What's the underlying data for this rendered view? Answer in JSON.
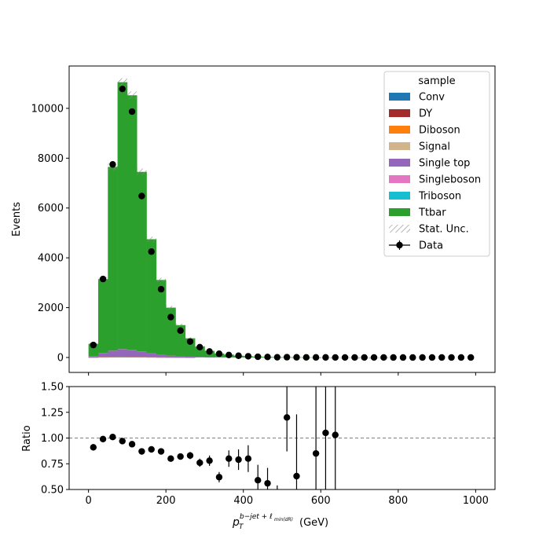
{
  "chart_data": [
    {
      "type": "bar",
      "subtype": "stacked-histogram-with-data-points",
      "ylabel": "Events",
      "xlim": [
        -50,
        1050
      ],
      "ylim": [
        -600,
        11700
      ],
      "x_ticks": [
        0,
        200,
        400,
        600,
        800,
        1000
      ],
      "x_tick_labels": [
        "",
        "",
        "",
        "",
        "",
        ""
      ],
      "y_ticks": [
        0,
        2000,
        4000,
        6000,
        8000,
        10000
      ],
      "y_tick_labels": [
        "0",
        "2000",
        "4000",
        "6000",
        "8000",
        "10000"
      ],
      "bin_edges": [
        0,
        25,
        50,
        75,
        100,
        125,
        150,
        175,
        200,
        225,
        250,
        275,
        300,
        325,
        350,
        375,
        400,
        425,
        450,
        475,
        500,
        525,
        550,
        575,
        600,
        625,
        650,
        675,
        700,
        725,
        750,
        775,
        800,
        825,
        850,
        875,
        900,
        925,
        950,
        975,
        1000
      ],
      "series": [
        {
          "name": "Conv",
          "color": "#1f77b4",
          "values": [
            2,
            6,
            10,
            12,
            10,
            8,
            5,
            3,
            2,
            1,
            1,
            0,
            0,
            0,
            0,
            0,
            0,
            0,
            0,
            0,
            0,
            0,
            0,
            0,
            0,
            0,
            0,
            0,
            0,
            0,
            0,
            0,
            0,
            0,
            0,
            0,
            0,
            0,
            0,
            0
          ]
        },
        {
          "name": "DY",
          "color": "#a52a2a",
          "values": [
            2,
            6,
            10,
            11,
            9,
            7,
            4,
            3,
            2,
            1,
            1,
            0,
            0,
            0,
            0,
            0,
            0,
            0,
            0,
            0,
            0,
            0,
            0,
            0,
            0,
            0,
            0,
            0,
            0,
            0,
            0,
            0,
            0,
            0,
            0,
            0,
            0,
            0,
            0,
            0
          ]
        },
        {
          "name": "Diboson",
          "color": "#ff7f0e",
          "values": [
            1,
            2,
            3,
            3,
            3,
            2,
            1,
            1,
            1,
            0,
            0,
            0,
            0,
            0,
            0,
            0,
            0,
            0,
            0,
            0,
            0,
            0,
            0,
            0,
            0,
            0,
            0,
            0,
            0,
            0,
            0,
            0,
            0,
            0,
            0,
            0,
            0,
            0,
            0,
            0
          ]
        },
        {
          "name": "Signal",
          "color": "#d2b48c",
          "values": [
            1,
            3,
            5,
            6,
            5,
            4,
            3,
            2,
            1,
            1,
            0,
            0,
            0,
            0,
            0,
            0,
            0,
            0,
            0,
            0,
            0,
            0,
            0,
            0,
            0,
            0,
            0,
            0,
            0,
            0,
            0,
            0,
            0,
            0,
            0,
            0,
            0,
            0,
            0,
            0
          ]
        },
        {
          "name": "Single top",
          "color": "#9467bd",
          "values": [
            45,
            160,
            240,
            300,
            280,
            220,
            150,
            100,
            65,
            45,
            30,
            20,
            14,
            10,
            7,
            5,
            4,
            3,
            2,
            2,
            1,
            1,
            1,
            1,
            0,
            0,
            0,
            0,
            0,
            0,
            0,
            0,
            0,
            0,
            0,
            0,
            0,
            0,
            0,
            0
          ]
        },
        {
          "name": "Singleboson",
          "color": "#e377c2",
          "values": [
            1,
            3,
            4,
            4,
            3,
            3,
            2,
            1,
            1,
            0,
            0,
            0,
            0,
            0,
            0,
            0,
            0,
            0,
            0,
            0,
            0,
            0,
            0,
            0,
            0,
            0,
            0,
            0,
            0,
            0,
            0,
            0,
            0,
            0,
            0,
            0,
            0,
            0,
            0,
            0
          ]
        },
        {
          "name": "Triboson",
          "color": "#17becf",
          "values": [
            0,
            0,
            0,
            0,
            0,
            0,
            0,
            0,
            0,
            0,
            0,
            0,
            0,
            0,
            0,
            0,
            0,
            0,
            0,
            0,
            0,
            0,
            0,
            0,
            0,
            0,
            0,
            0,
            0,
            0,
            0,
            0,
            0,
            0,
            0,
            0,
            0,
            0,
            0,
            0
          ]
        },
        {
          "name": "Ttbar",
          "color": "#2ca02c",
          "values": [
            498,
            2964,
            7378,
            10714,
            10215,
            7206,
            4582,
            3001,
            1928,
            1252,
            738,
            420,
            252,
            152,
            108,
            65,
            48,
            32,
            22,
            16,
            11,
            8,
            6,
            4,
            3,
            2,
            2,
            1,
            1,
            1,
            1,
            0,
            0,
            0,
            0,
            0,
            0,
            0,
            0,
            0
          ]
        }
      ],
      "data_points": {
        "name": "Data",
        "x": [
          12.5,
          37.5,
          62.5,
          87.5,
          112.5,
          137.5,
          162.5,
          187.5,
          212.5,
          237.5,
          262.5,
          287.5,
          312.5,
          337.5,
          362.5,
          387.5,
          412.5,
          437.5,
          462.5,
          487.5,
          512.5,
          537.5,
          562.5,
          587.5,
          612.5,
          637.5,
          662.5,
          687.5,
          712.5,
          737.5,
          762.5,
          787.5,
          812.5,
          837.5,
          862.5,
          887.5,
          912.5,
          937.5,
          962.5,
          987.5
        ],
        "y": [
          500,
          3150,
          7750,
          10780,
          9870,
          6480,
          4250,
          2740,
          1620,
          1080,
          640,
          415,
          240,
          150,
          100,
          70,
          50,
          30,
          20,
          10,
          12,
          8,
          5,
          4,
          3,
          2,
          2,
          1,
          1,
          1,
          1,
          0,
          0,
          0,
          0,
          0,
          0,
          0,
          0,
          0
        ]
      },
      "legend": {
        "title": "sample",
        "placement": "upper right",
        "entries": [
          "Conv",
          "DY",
          "Diboson",
          "Signal",
          "Single top",
          "Singleboson",
          "Triboson",
          "Ttbar",
          "Stat. Unc.",
          "Data"
        ]
      }
    },
    {
      "type": "scatter",
      "subtype": "ratio-with-error-bars",
      "ylabel": "Ratio",
      "xlabel_main": "p",
      "xlabel_sub": "T",
      "xlabel_sup": "b−jet + ℓ",
      "xlabel_sup_sub": "min(dR)",
      "xlabel_unit": "(GeV)",
      "xlim": [
        -50,
        1050
      ],
      "ylim": [
        0.5,
        1.5
      ],
      "reference_line": 1.0,
      "x_ticks": [
        0,
        200,
        400,
        600,
        800,
        1000
      ],
      "x_tick_labels": [
        "0",
        "200",
        "400",
        "600",
        "800",
        "1000"
      ],
      "y_ticks": [
        0.5,
        0.75,
        1.0,
        1.25,
        1.5
      ],
      "y_tick_labels": [
        "0.50",
        "0.75",
        "1.00",
        "1.25",
        "1.50"
      ],
      "points": {
        "x": [
          12.5,
          37.5,
          62.5,
          87.5,
          112.5,
          137.5,
          162.5,
          187.5,
          212.5,
          237.5,
          262.5,
          287.5,
          312.5,
          337.5,
          362.5,
          387.5,
          412.5,
          437.5,
          462.5,
          512.5,
          537.5,
          587.5,
          612.5,
          637.5
        ],
        "y": [
          0.91,
          0.99,
          1.01,
          0.97,
          0.94,
          0.87,
          0.89,
          0.87,
          0.8,
          0.82,
          0.83,
          0.76,
          0.78,
          0.62,
          0.8,
          0.79,
          0.8,
          0.59,
          0.56,
          1.2,
          0.63,
          0.85,
          1.05,
          1.03
        ],
        "err": [
          0.03,
          0.015,
          0.01,
          0.01,
          0.01,
          0.012,
          0.015,
          0.02,
          0.025,
          0.03,
          0.035,
          0.04,
          0.05,
          0.05,
          0.08,
          0.1,
          0.13,
          0.15,
          0.15,
          0.33,
          0.6,
          0.9,
          1.1,
          1.3
        ]
      },
      "extra_error_bars": [
        {
          "x": 487.5,
          "y_low": 0.49,
          "y_high": 0.54
        }
      ]
    }
  ]
}
